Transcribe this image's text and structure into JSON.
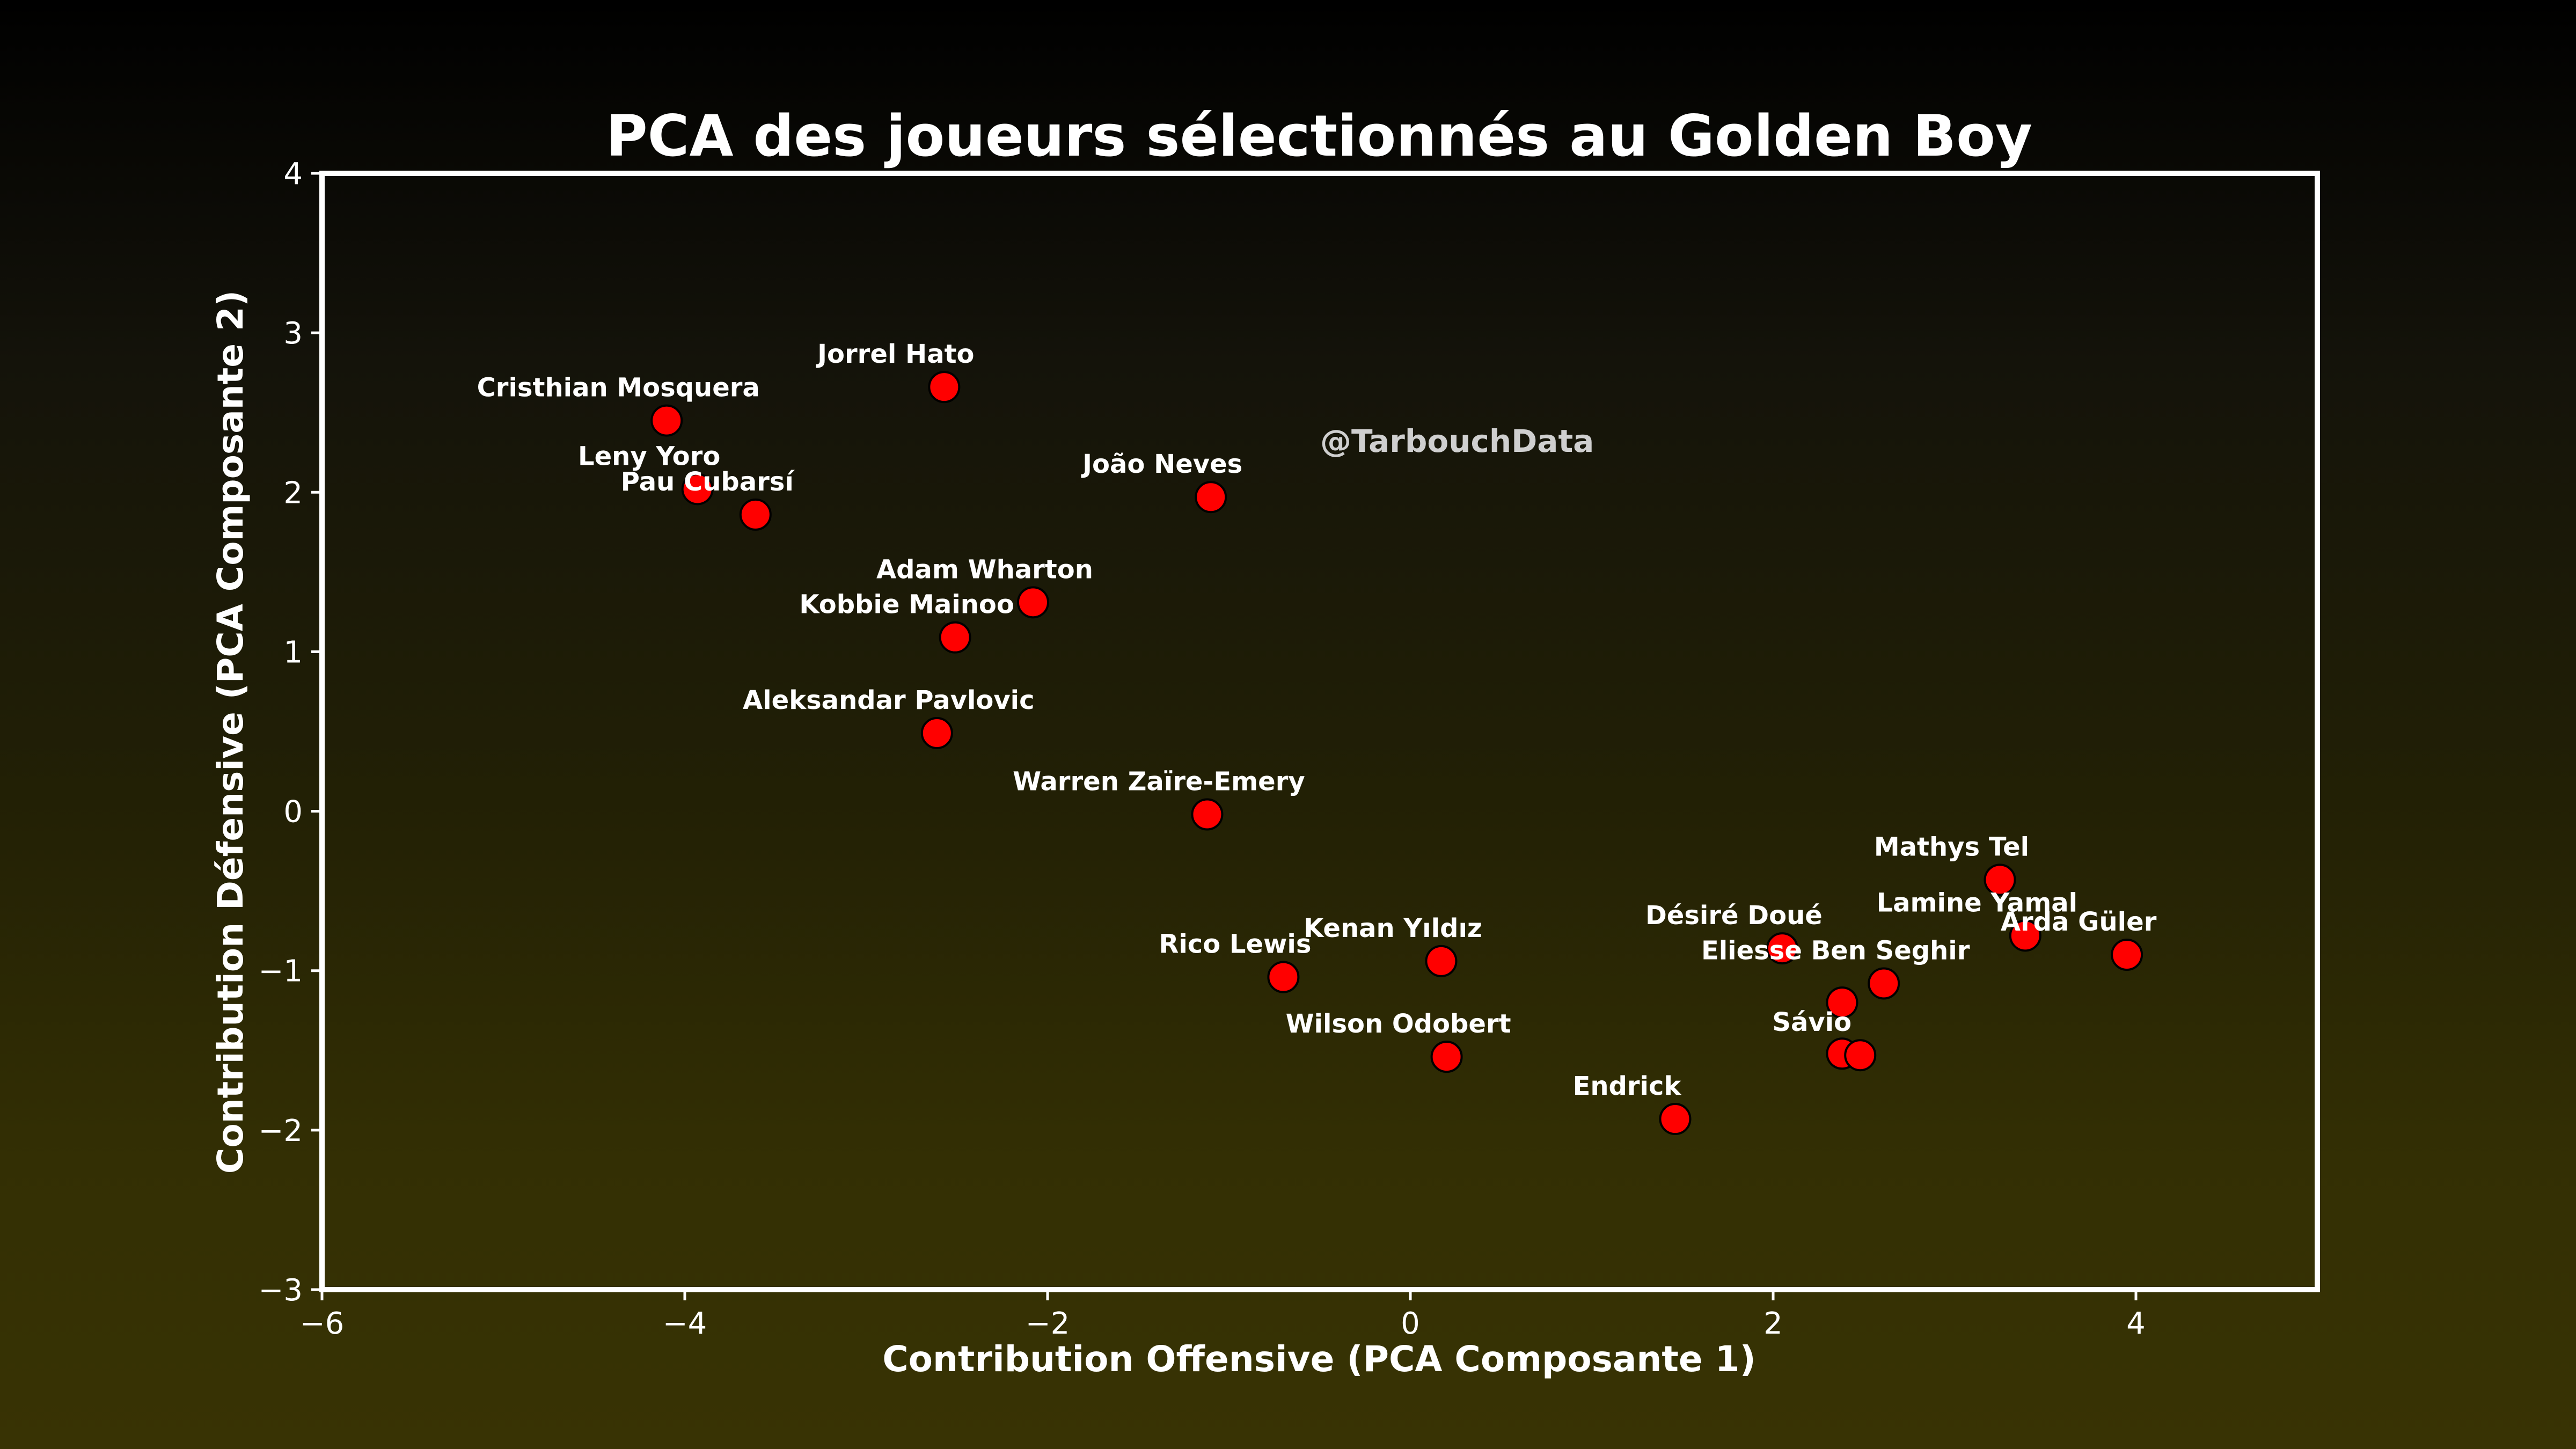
{
  "chart_data": {
    "type": "scatter",
    "title": "PCA des joueurs sélectionnés au Golden Boy",
    "xlabel": "Contribution Offensive (PCA Composante 1)",
    "ylabel": "Contribution Défensive (PCA Composante 2)",
    "xlim": [
      -6,
      5
    ],
    "ylim": [
      -3,
      4
    ],
    "xticks": [
      -6,
      -4,
      -2,
      0,
      2,
      4
    ],
    "yticks": [
      -3,
      -2,
      -1,
      0,
      1,
      2,
      3,
      4
    ],
    "xtick_labels": [
      "−6",
      "−4",
      "−2",
      "0",
      "2",
      "4"
    ],
    "ytick_labels": [
      "−3",
      "−2",
      "−1",
      "0",
      "1",
      "2",
      "3",
      "4"
    ],
    "grid": false,
    "watermark": "@TarbouchData",
    "marker_color": "#ff0000",
    "marker_edge_color": "#000000",
    "points": [
      {
        "x": -4.1,
        "y": 2.45,
        "label": "Cristhian Mosquera"
      },
      {
        "x": -2.57,
        "y": 2.66,
        "label": "Jorrel Hato"
      },
      {
        "x": -3.93,
        "y": 2.02,
        "label": "Leny Yoro"
      },
      {
        "x": -3.61,
        "y": 1.86,
        "label": "Pau Cubarsí"
      },
      {
        "x": -1.1,
        "y": 1.97,
        "label": "João Neves"
      },
      {
        "x": -2.08,
        "y": 1.31,
        "label": "Adam Wharton"
      },
      {
        "x": -2.51,
        "y": 1.09,
        "label": "Kobbie Mainoo"
      },
      {
        "x": -2.61,
        "y": 0.49,
        "label": "Aleksandar Pavlovic"
      },
      {
        "x": -1.12,
        "y": -0.02,
        "label": "Warren Zaïre-Emery"
      },
      {
        "x": 3.25,
        "y": -0.43,
        "label": "Mathys Tel"
      },
      {
        "x": 3.39,
        "y": -0.78,
        "label": "Lamine Yamal"
      },
      {
        "x": 3.95,
        "y": -0.9,
        "label": "Arda Güler"
      },
      {
        "x": 2.05,
        "y": -0.86,
        "label": "Désiré Doué"
      },
      {
        "x": 2.61,
        "y": -1.08,
        "label": "Eliesse Ben Seghir"
      },
      {
        "x": 2.38,
        "y": -1.2,
        "label": ""
      },
      {
        "x": 2.38,
        "y": -1.52,
        "label": ""
      },
      {
        "x": 2.48,
        "y": -1.53,
        "label": "Sávio"
      },
      {
        "x": 0.17,
        "y": -0.94,
        "label": "Kenan Yıldız"
      },
      {
        "x": -0.7,
        "y": -1.04,
        "label": "Rico Lewis"
      },
      {
        "x": 0.2,
        "y": -1.54,
        "label": "Wilson Odobert"
      },
      {
        "x": 1.46,
        "y": -1.93,
        "label": "Endrick"
      }
    ]
  }
}
